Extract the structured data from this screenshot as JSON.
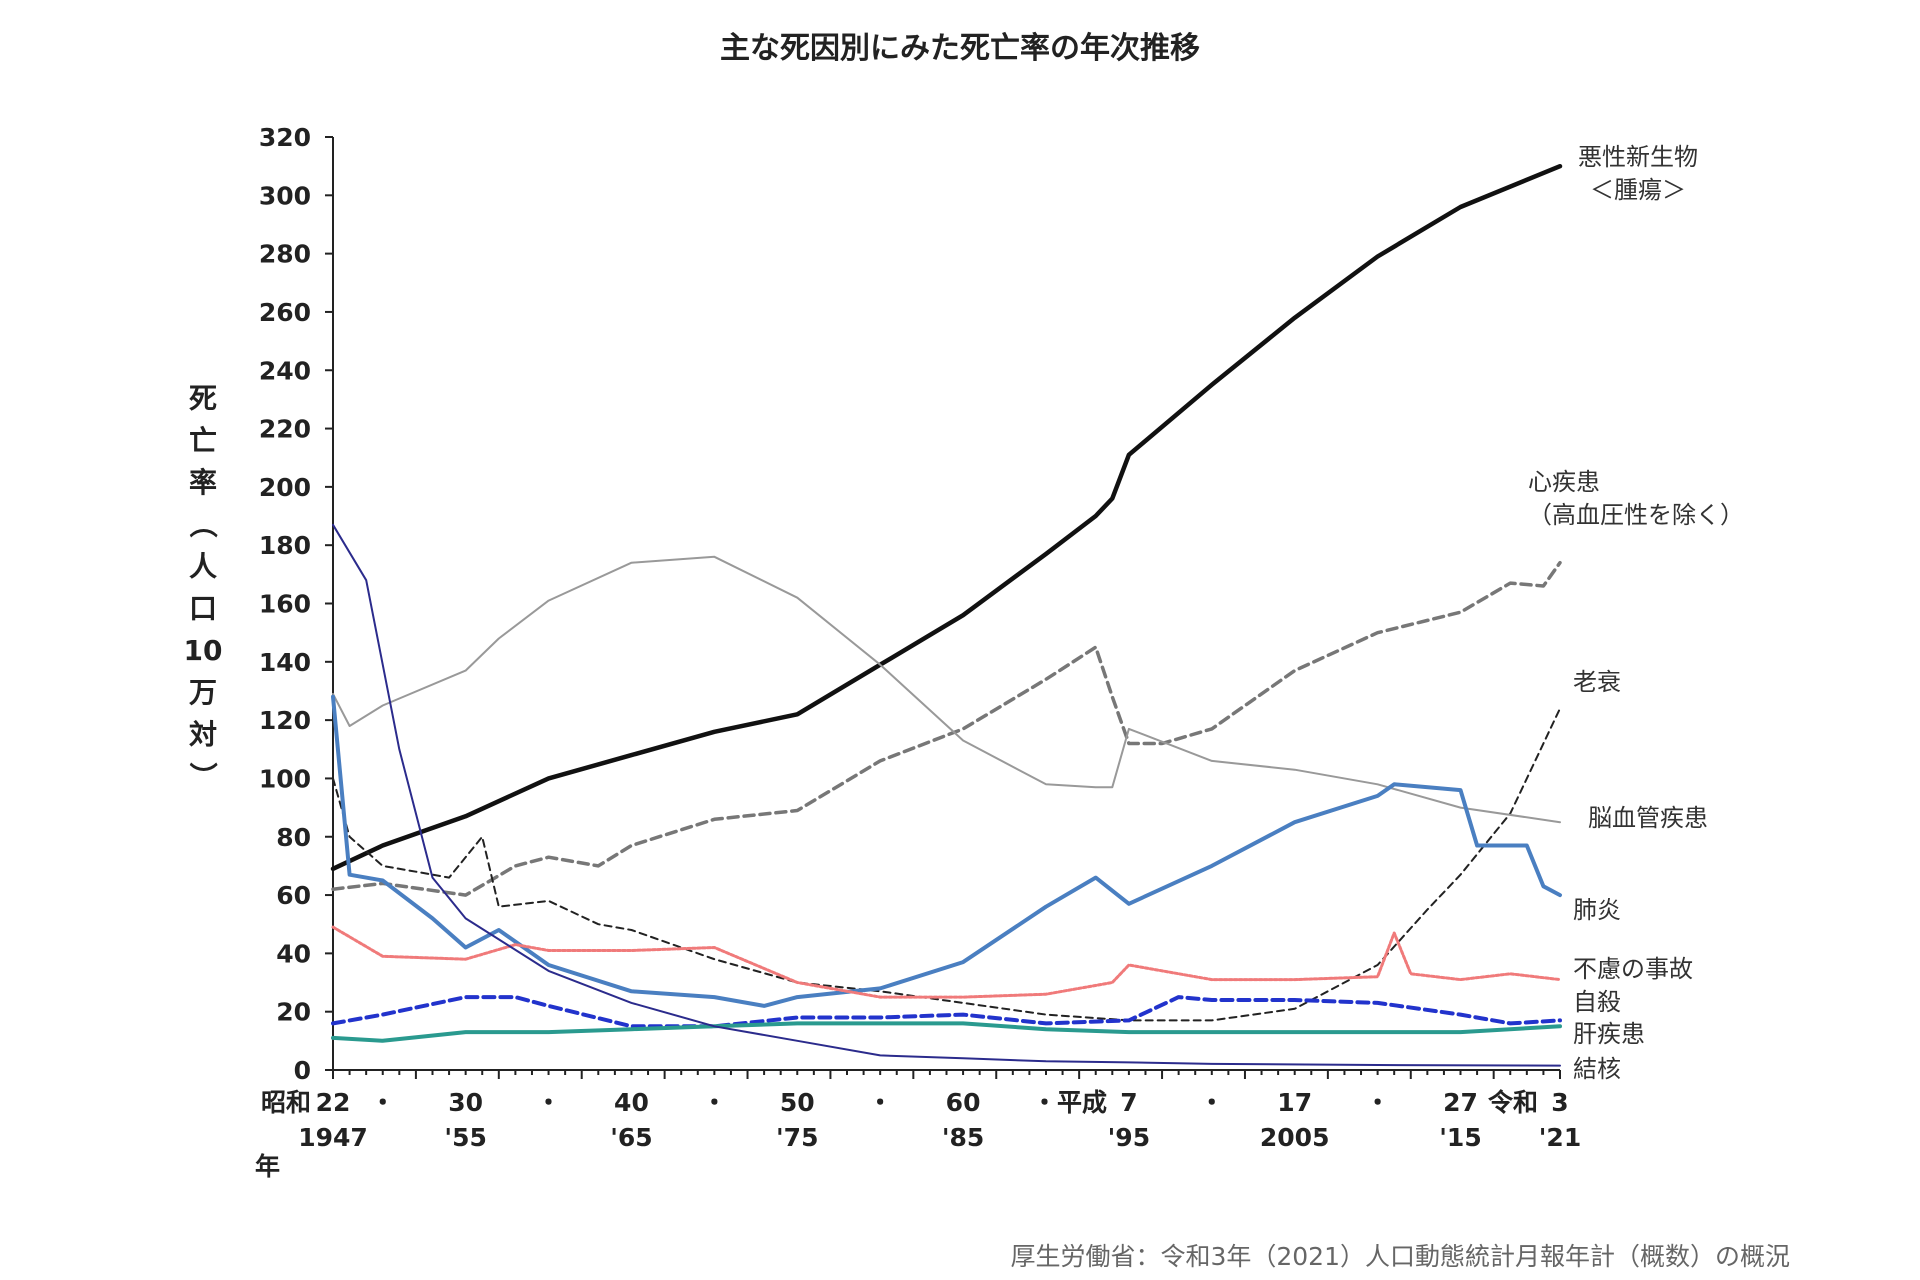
{
  "chart_data": {
    "type": "line",
    "title": "主な死因別にみた死亡率の年次推移",
    "ylabel": "死亡率（人口10万対）",
    "ylabel_chars": [
      "死",
      "亡",
      "率",
      "（",
      "人",
      "口",
      "10",
      "万",
      "対",
      "）"
    ],
    "xlabel": "年",
    "ylim": [
      0,
      320
    ],
    "xlim": [
      1947,
      2021
    ],
    "y_ticks": [
      0,
      20,
      40,
      60,
      80,
      100,
      120,
      140,
      160,
      180,
      200,
      220,
      240,
      260,
      280,
      300,
      320
    ],
    "x_ticks": [
      {
        "x": 1947,
        "era": "昭和",
        "top": "22",
        "bottom": "1947"
      },
      {
        "x": 1950,
        "top": "・"
      },
      {
        "x": 1955,
        "top": "30",
        "bottom": "'55"
      },
      {
        "x": 1960,
        "top": "・"
      },
      {
        "x": 1965,
        "top": "40",
        "bottom": "'65"
      },
      {
        "x": 1970,
        "top": "・"
      },
      {
        "x": 1975,
        "top": "50",
        "bottom": "'75"
      },
      {
        "x": 1980,
        "top": "・"
      },
      {
        "x": 1985,
        "top": "60",
        "bottom": "'85"
      },
      {
        "x": 1990,
        "top": "・平成"
      },
      {
        "x": 1995,
        "top": "7",
        "bottom": "'95"
      },
      {
        "x": 2000,
        "top": "・"
      },
      {
        "x": 2005,
        "top": "17",
        "bottom": "2005"
      },
      {
        "x": 2010,
        "top": "・"
      },
      {
        "x": 2015,
        "top": "27",
        "bottom": "'15"
      },
      {
        "x": 2021,
        "era": "令和",
        "top": "3",
        "bottom": "'21"
      }
    ],
    "series": [
      {
        "name": "悪性新生物\n＜腫瘍＞",
        "label_lines": [
          "悪性新生物",
          "＜腫瘍＞"
        ],
        "color": "#111111",
        "width": 4.5,
        "dash": "",
        "points": [
          [
            1947,
            69
          ],
          [
            1950,
            77
          ],
          [
            1955,
            87
          ],
          [
            1960,
            100
          ],
          [
            1965,
            108
          ],
          [
            1970,
            116
          ],
          [
            1975,
            122
          ],
          [
            1980,
            139
          ],
          [
            1985,
            156
          ],
          [
            1990,
            177
          ],
          [
            1993,
            190
          ],
          [
            1994,
            196
          ],
          [
            1995,
            211
          ],
          [
            2000,
            235
          ],
          [
            2005,
            258
          ],
          [
            2010,
            279
          ],
          [
            2015,
            296
          ],
          [
            2021,
            310
          ]
        ]
      },
      {
        "name": "心疾患\n（高血圧性を除く）",
        "label_lines": [
          "心疾患",
          "（高血圧性を除く）"
        ],
        "color": "#777777",
        "width": 3.5,
        "dash": "10,6",
        "points": [
          [
            1947,
            62
          ],
          [
            1950,
            64
          ],
          [
            1955,
            60
          ],
          [
            1958,
            70
          ],
          [
            1960,
            73
          ],
          [
            1963,
            70
          ],
          [
            1965,
            77
          ],
          [
            1970,
            86
          ],
          [
            1975,
            89
          ],
          [
            1980,
            106
          ],
          [
            1985,
            117
          ],
          [
            1990,
            134
          ],
          [
            1993,
            145
          ],
          [
            1994,
            128
          ],
          [
            1995,
            112
          ],
          [
            1997,
            112
          ],
          [
            2000,
            117
          ],
          [
            2005,
            137
          ],
          [
            2010,
            150
          ],
          [
            2015,
            157
          ],
          [
            2018,
            167
          ],
          [
            2020,
            166
          ],
          [
            2021,
            174
          ]
        ]
      },
      {
        "name": "老衰",
        "label_lines": [
          "老衰"
        ],
        "color": "#222222",
        "width": 2,
        "dash": "7,5",
        "points": [
          [
            1947,
            100
          ],
          [
            1948,
            80
          ],
          [
            1950,
            70
          ],
          [
            1952,
            68
          ],
          [
            1954,
            66
          ],
          [
            1956,
            80
          ],
          [
            1957,
            56
          ],
          [
            1960,
            58
          ],
          [
            1963,
            50
          ],
          [
            1965,
            48
          ],
          [
            1970,
            38
          ],
          [
            1975,
            30
          ],
          [
            1980,
            27
          ],
          [
            1985,
            23
          ],
          [
            1990,
            19
          ],
          [
            1995,
            17
          ],
          [
            2000,
            17
          ],
          [
            2005,
            21
          ],
          [
            2010,
            36
          ],
          [
            2013,
            55
          ],
          [
            2015,
            67
          ],
          [
            2018,
            88
          ],
          [
            2021,
            124
          ]
        ]
      },
      {
        "name": "脳血管疾患",
        "label_lines": [
          "脳血管疾患"
        ],
        "color": "#999999",
        "width": 2,
        "dash": "",
        "points": [
          [
            1947,
            129
          ],
          [
            1948,
            118
          ],
          [
            1950,
            125
          ],
          [
            1955,
            137
          ],
          [
            1957,
            148
          ],
          [
            1960,
            161
          ],
          [
            1965,
            174
          ],
          [
            1970,
            176
          ],
          [
            1975,
            162
          ],
          [
            1980,
            139
          ],
          [
            1985,
            113
          ],
          [
            1990,
            98
          ],
          [
            1993,
            97
          ],
          [
            1994,
            97
          ],
          [
            1995,
            117
          ],
          [
            2000,
            106
          ],
          [
            2005,
            103
          ],
          [
            2010,
            98
          ],
          [
            2015,
            90
          ],
          [
            2021,
            85
          ]
        ]
      },
      {
        "name": "肺炎",
        "label_lines": [
          "肺炎"
        ],
        "color": "#4a7fc1",
        "width": 4,
        "dash": "",
        "points": [
          [
            1947,
            128
          ],
          [
            1948,
            67
          ],
          [
            1950,
            65
          ],
          [
            1953,
            52
          ],
          [
            1955,
            42
          ],
          [
            1957,
            48
          ],
          [
            1960,
            36
          ],
          [
            1965,
            27
          ],
          [
            1970,
            25
          ],
          [
            1973,
            22
          ],
          [
            1975,
            25
          ],
          [
            1980,
            28
          ],
          [
            1985,
            37
          ],
          [
            1990,
            56
          ],
          [
            1993,
            66
          ],
          [
            1995,
            57
          ],
          [
            2000,
            70
          ],
          [
            2005,
            85
          ],
          [
            2010,
            94
          ],
          [
            2011,
            98
          ],
          [
            2015,
            96
          ],
          [
            2016,
            77
          ],
          [
            2019,
            77
          ],
          [
            2020,
            63
          ],
          [
            2021,
            60
          ]
        ]
      },
      {
        "name": "不慮の事故",
        "label_lines": [
          "不慮の事故"
        ],
        "color": "#f07a7a",
        "width": 3,
        "dash": "3,2",
        "points": [
          [
            1947,
            49
          ],
          [
            1950,
            39
          ],
          [
            1955,
            38
          ],
          [
            1958,
            43
          ],
          [
            1960,
            41
          ],
          [
            1965,
            41
          ],
          [
            1970,
            42
          ],
          [
            1975,
            30
          ],
          [
            1980,
            25
          ],
          [
            1985,
            25
          ],
          [
            1990,
            26
          ],
          [
            1994,
            30
          ],
          [
            1995,
            36
          ],
          [
            2000,
            31
          ],
          [
            2005,
            31
          ],
          [
            2010,
            32
          ],
          [
            2011,
            47
          ],
          [
            2012,
            33
          ],
          [
            2015,
            31
          ],
          [
            2018,
            33
          ],
          [
            2021,
            31
          ]
        ]
      },
      {
        "name": "自殺",
        "label_lines": [
          "自殺"
        ],
        "color": "#2233cc",
        "width": 4,
        "dash": "11,6",
        "points": [
          [
            1947,
            16
          ],
          [
            1950,
            19
          ],
          [
            1955,
            25
          ],
          [
            1958,
            25
          ],
          [
            1960,
            22
          ],
          [
            1965,
            15
          ],
          [
            1970,
            15
          ],
          [
            1975,
            18
          ],
          [
            1980,
            18
          ],
          [
            1985,
            19
          ],
          [
            1990,
            16
          ],
          [
            1995,
            17
          ],
          [
            1998,
            25
          ],
          [
            2000,
            24
          ],
          [
            2005,
            24
          ],
          [
            2010,
            23
          ],
          [
            2015,
            19
          ],
          [
            2018,
            16
          ],
          [
            2021,
            17
          ]
        ]
      },
      {
        "name": "肝疾患",
        "label_lines": [
          "肝疾患"
        ],
        "color": "#2a9a8f",
        "width": 4,
        "dash": "",
        "points": [
          [
            1947,
            11
          ],
          [
            1950,
            10
          ],
          [
            1955,
            13
          ],
          [
            1960,
            13
          ],
          [
            1965,
            14
          ],
          [
            1970,
            15
          ],
          [
            1975,
            16
          ],
          [
            1980,
            16
          ],
          [
            1985,
            16
          ],
          [
            1990,
            14
          ],
          [
            1995,
            13
          ],
          [
            2000,
            13
          ],
          [
            2005,
            13
          ],
          [
            2010,
            13
          ],
          [
            2015,
            13
          ],
          [
            2021,
            15
          ]
        ]
      },
      {
        "name": "結核",
        "label_lines": [
          "結核"
        ],
        "color": "#2b2b8c",
        "width": 2,
        "dash": "",
        "points": [
          [
            1947,
            187
          ],
          [
            1949,
            168
          ],
          [
            1951,
            110
          ],
          [
            1953,
            66
          ],
          [
            1955,
            52
          ],
          [
            1960,
            34
          ],
          [
            1965,
            23
          ],
          [
            1970,
            15
          ],
          [
            1975,
            10
          ],
          [
            1980,
            5
          ],
          [
            1985,
            4
          ],
          [
            1990,
            3
          ],
          [
            1995,
            2.6
          ],
          [
            2000,
            2.1
          ],
          [
            2010,
            1.7
          ],
          [
            2021,
            1.5
          ]
        ]
      }
    ],
    "source": "厚生労働省：令和3年（2021）人口動態統計月報年計（概数）の概況"
  }
}
